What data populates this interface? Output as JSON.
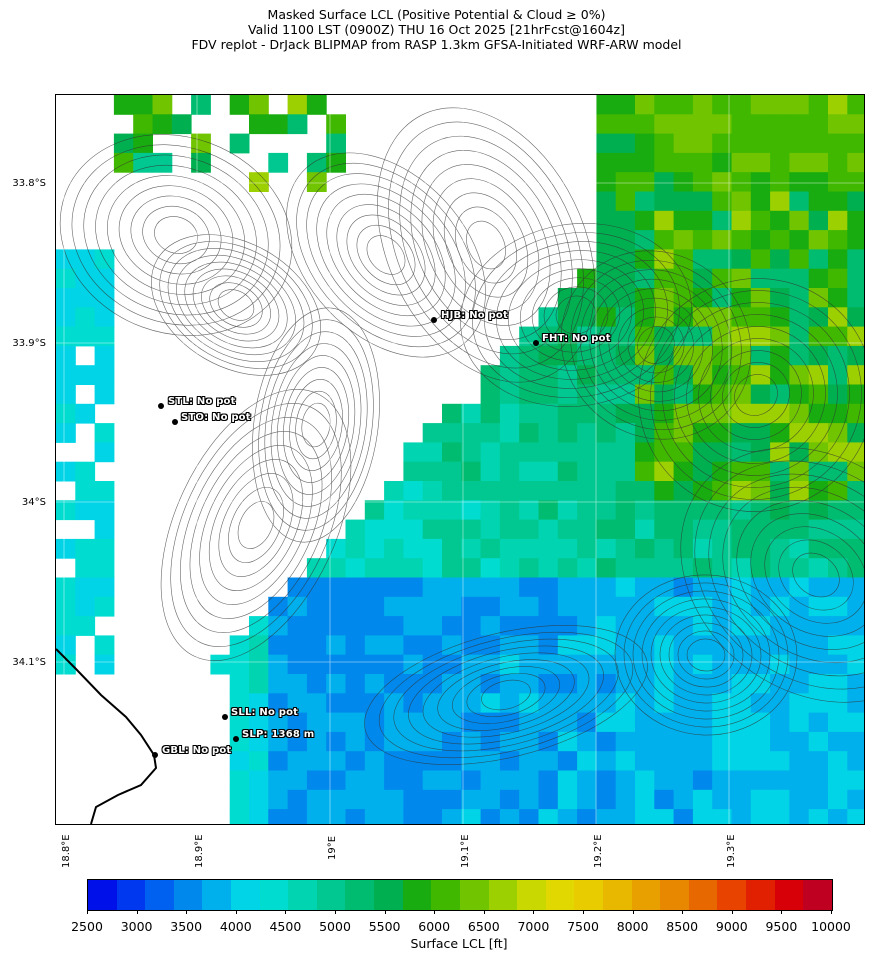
{
  "title": {
    "line1": "Masked Surface LCL (Positive Potential & Cloud ≥ 0%)",
    "line2": "Valid 1100 LST (0900Z) THU 16 Oct 2025 [21hrFcst@1604z]",
    "line3": "FDV replot - DrJack BLIPMAP from RASP 1.3km GFSA-Initiated WRF-ARW model"
  },
  "map": {
    "latitude_labels": [
      "33.8°S",
      "33.9°S",
      "34°S",
      "34.1°S"
    ],
    "longitude_labels": [
      "18.8°E",
      "18.9°E",
      "19°E",
      "19.1°E",
      "19.2°E",
      "19.3°E"
    ],
    "stations": [
      {
        "id": "HJB",
        "label": "HJB: No pot"
      },
      {
        "id": "FHT",
        "label": "FHT: No pot"
      },
      {
        "id": "STL",
        "label": "STL: No pot"
      },
      {
        "id": "STO",
        "label": "STO: No pot"
      },
      {
        "id": "SLL",
        "label": "SLL: No pot"
      },
      {
        "id": "SLP",
        "label": "SLP: 1368 m"
      },
      {
        "id": "GBL",
        "label": "GBL: No pot"
      }
    ]
  },
  "colorbar": {
    "label": "Surface LCL [ft]",
    "tick_labels": [
      "2500",
      "3000",
      "3500",
      "4000",
      "4500",
      "5000",
      "5500",
      "6000",
      "6500",
      "7000",
      "7500",
      "8000",
      "8500",
      "9000",
      "9500",
      "10000"
    ],
    "colors": [
      "#0010e8",
      "#0038f0",
      "#0060f0",
      "#0088ec",
      "#00b0ec",
      "#00d4e6",
      "#00dcd0",
      "#00d4b0",
      "#00c890",
      "#00bc70",
      "#00b050",
      "#18ac10",
      "#40b800",
      "#70c400",
      "#9cd000",
      "#c8d800",
      "#e0d800",
      "#e8cc00",
      "#e8b800",
      "#e8a000",
      "#e88800",
      "#e86800",
      "#e84400",
      "#e02000",
      "#d80008",
      "#c00020"
    ]
  },
  "chart_data": {
    "type": "heatmap",
    "title": "Masked Surface LCL (Positive Potential & Cloud ≥ 0%)",
    "colorbar_label": "Surface LCL [ft]",
    "value_range": [
      2500,
      10000
    ],
    "x_axis": {
      "ticks": [
        "18.8°E",
        "18.9°E",
        "19°E",
        "19.1°E",
        "19.2°E",
        "19.3°E"
      ]
    },
    "y_axis": {
      "ticks": [
        "33.8°S",
        "33.9°S",
        "34°S",
        "34.1°S"
      ]
    },
    "annotations": [
      {
        "station": "HJB",
        "value": "No pot"
      },
      {
        "station": "FHT",
        "value": "No pot"
      },
      {
        "station": "STL",
        "value": "No pot"
      },
      {
        "station": "STO",
        "value": "No pot"
      },
      {
        "station": "SLL",
        "value": "No pot"
      },
      {
        "station": "SLP",
        "value": "1368 m"
      },
      {
        "station": "GBL",
        "value": "No pot"
      }
    ]
  }
}
